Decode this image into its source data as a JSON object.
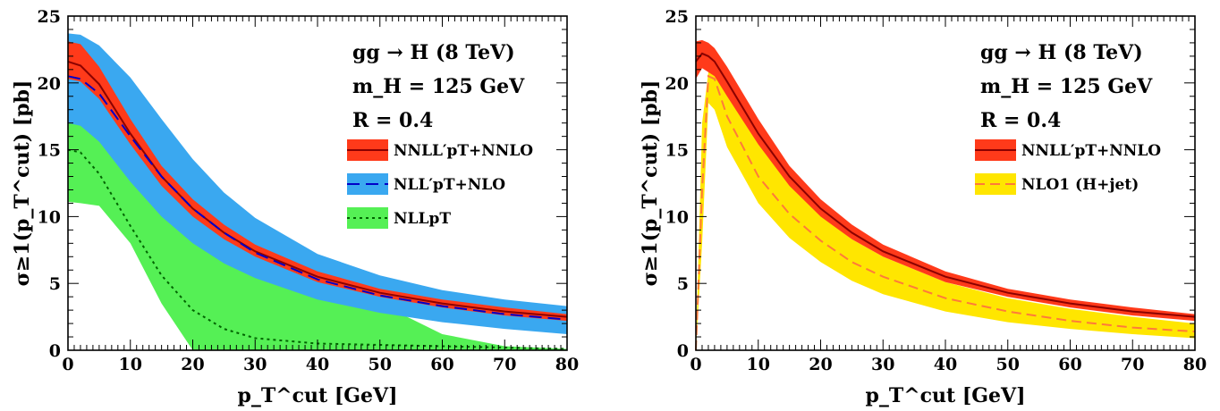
{
  "chart_data": [
    {
      "type": "line",
      "xlabel": "p_T^cut [GeV]",
      "ylabel": "σ≥1(p_T^cut) [pb]",
      "xlim": [
        0,
        80
      ],
      "ylim": [
        0,
        25
      ],
      "x_ticks": [
        "0",
        "10",
        "20",
        "30",
        "40",
        "50",
        "60",
        "70",
        "80"
      ],
      "y_ticks": [
        "0",
        "5",
        "10",
        "15",
        "20",
        "25"
      ],
      "annotations": [
        "gg → H (8 TeV)",
        "m_H = 125 GeV",
        "R = 0.4"
      ],
      "legend_position": "right",
      "x": [
        0,
        2,
        5,
        10,
        15,
        20,
        25,
        30,
        40,
        50,
        60,
        70,
        80
      ],
      "series": [
        {
          "name": "NNLL′pT+NNLO",
          "color": "#ff3a1a",
          "line_color": "#8b0000",
          "central": [
            21.6,
            21.3,
            19.9,
            16.2,
            13.0,
            10.6,
            8.8,
            7.4,
            5.5,
            4.3,
            3.5,
            2.9,
            2.5
          ],
          "lower": [
            20.3,
            20.1,
            18.8,
            15.4,
            12.3,
            10.0,
            8.3,
            7.0,
            5.1,
            4.0,
            3.2,
            2.6,
            2.2
          ],
          "upper": [
            23.1,
            22.9,
            21.2,
            17.3,
            13.8,
            11.3,
            9.4,
            7.9,
            5.9,
            4.6,
            3.8,
            3.2,
            2.7
          ]
        },
        {
          "name": "NLL′pT+NLO",
          "color": "#3aa8f0",
          "line_color": "#0000c8",
          "central": [
            20.5,
            20.3,
            19.2,
            16.0,
            13.0,
            10.6,
            8.8,
            7.3,
            5.3,
            4.1,
            3.3,
            2.7,
            2.3
          ],
          "lower": [
            17.0,
            16.8,
            15.6,
            12.6,
            10.0,
            8.0,
            6.5,
            5.4,
            3.8,
            2.8,
            2.1,
            1.6,
            1.2
          ],
          "upper": [
            23.7,
            23.6,
            22.8,
            20.4,
            17.3,
            14.3,
            11.8,
            9.9,
            7.2,
            5.6,
            4.5,
            3.8,
            3.3
          ]
        },
        {
          "name": "NLLpT",
          "color": "#55f055",
          "line_color": "#006400",
          "central": [
            15.0,
            14.8,
            13.2,
            9.3,
            5.6,
            3.0,
            1.6,
            0.9,
            0.5,
            0.4,
            0.3,
            0.2,
            0.1
          ],
          "lower": [
            11.1,
            11.0,
            10.8,
            8.0,
            3.5,
            0.0,
            0.0,
            0.0,
            0.0,
            0.0,
            0.0,
            0.0,
            0.0
          ],
          "upper": [
            17.0,
            16.9,
            16.1,
            14.0,
            11.5,
            9.6,
            8.1,
            6.9,
            5.1,
            3.5,
            1.2,
            0.3,
            0.1
          ]
        }
      ]
    },
    {
      "type": "line",
      "xlabel": "p_T^cut [GeV]",
      "ylabel": "σ≥1(p_T^cut) [pb]",
      "xlim": [
        0,
        80
      ],
      "ylim": [
        0,
        25
      ],
      "x_ticks": [
        "0",
        "10",
        "20",
        "30",
        "40",
        "50",
        "60",
        "70",
        "80"
      ],
      "y_ticks": [
        "0",
        "5",
        "10",
        "15",
        "20",
        "25"
      ],
      "annotations": [
        "gg → H (8 TeV)",
        "m_H = 125 GeV",
        "R = 0.4"
      ],
      "legend_position": "right",
      "x": [
        0,
        1,
        2,
        3,
        5,
        10,
        15,
        20,
        25,
        30,
        40,
        50,
        60,
        70,
        80
      ],
      "series": [
        {
          "name": "NNLL′pT+NNLO",
          "color": "#ff3a1a",
          "line_color": "#8b0000",
          "central": [
            21.6,
            22.2,
            22.0,
            21.6,
            20.1,
            16.2,
            13.0,
            10.6,
            8.8,
            7.4,
            5.5,
            4.3,
            3.5,
            2.9,
            2.5
          ],
          "lower": [
            20.3,
            21.1,
            20.8,
            20.5,
            19.0,
            15.4,
            12.3,
            10.0,
            8.3,
            7.0,
            5.1,
            4.0,
            3.2,
            2.6,
            2.2
          ],
          "upper": [
            23.1,
            23.2,
            23.0,
            22.6,
            21.2,
            17.3,
            13.8,
            11.3,
            9.4,
            7.9,
            5.9,
            4.6,
            3.8,
            3.2,
            2.7
          ]
        },
        {
          "name": "NLO1 (H+jet)",
          "color": "#ffe600",
          "line_color": "#ff7a3a",
          "central": [
            0.0,
            12.0,
            20.5,
            20.3,
            17.5,
            13.0,
            10.2,
            8.2,
            6.6,
            5.5,
            3.9,
            2.9,
            2.2,
            1.7,
            1.4
          ],
          "lower": [
            0.0,
            8.0,
            18.5,
            18.0,
            15.2,
            11.0,
            8.4,
            6.6,
            5.2,
            4.2,
            2.9,
            2.1,
            1.6,
            1.2,
            0.9
          ],
          "upper": [
            0.0,
            17.0,
            20.8,
            21.8,
            20.4,
            15.8,
            12.5,
            10.1,
            8.3,
            7.0,
            5.1,
            3.9,
            3.1,
            2.5,
            2.0
          ]
        }
      ]
    }
  ]
}
